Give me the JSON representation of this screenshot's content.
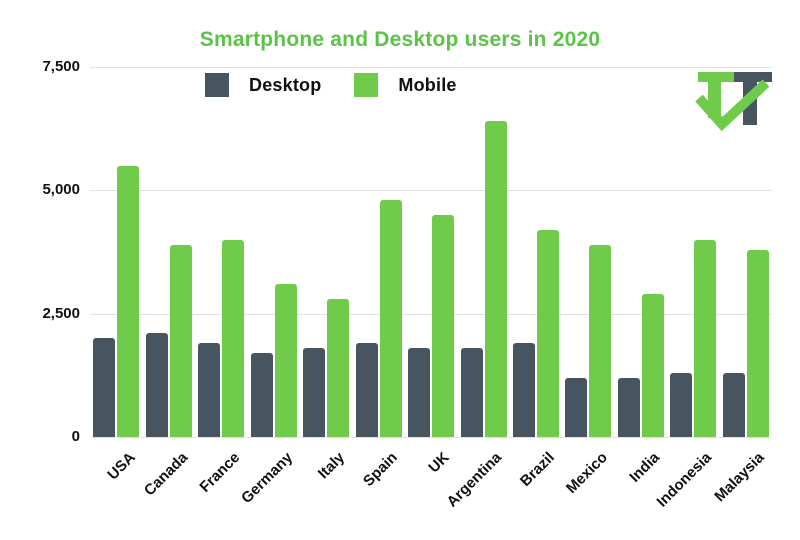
{
  "title": {
    "text": "Smartphone and Desktop users in 2020",
    "color": "#5BC347"
  },
  "legend": [
    {
      "label": "Desktop",
      "color": "#475561"
    },
    {
      "label": "Mobile",
      "color": "#6FCB49"
    }
  ],
  "logo": {
    "name": "tt-check-logo",
    "green": "#6FCB49",
    "slate": "#475561"
  },
  "colors": {
    "grid": "#E2E2E2",
    "axis_text": "#111111",
    "background": "#FFFFFF"
  },
  "chart_data": {
    "type": "bar",
    "title": "Smartphone and Desktop users in 2020",
    "categories": [
      "USA",
      "Canada",
      "France",
      "Germany",
      "Italy",
      "Spain",
      "UK",
      "Argentina",
      "Brazil",
      "Mexico",
      "India",
      "Indonesia",
      "Malaysia"
    ],
    "series": [
      {
        "name": "Desktop",
        "color": "#475561",
        "values": [
          2000,
          2100,
          1900,
          1700,
          1800,
          1900,
          1800,
          1800,
          1900,
          1200,
          1200,
          1300,
          1300
        ]
      },
      {
        "name": "Mobile",
        "color": "#6FCB49",
        "values": [
          5500,
          3900,
          4000,
          3100,
          2800,
          4800,
          4500,
          6400,
          4200,
          3900,
          2900,
          4000,
          3800
        ]
      }
    ],
    "xlabel": "",
    "ylabel": "",
    "ylim": [
      0,
      7500
    ],
    "yticks": [
      {
        "value": 0,
        "label": "0"
      },
      {
        "value": 2500,
        "label": "2,500"
      },
      {
        "value": 5000,
        "label": "5,000"
      },
      {
        "value": 7500,
        "label": "7,500"
      }
    ],
    "grid": "horizontal",
    "legend_position": "top-left"
  }
}
